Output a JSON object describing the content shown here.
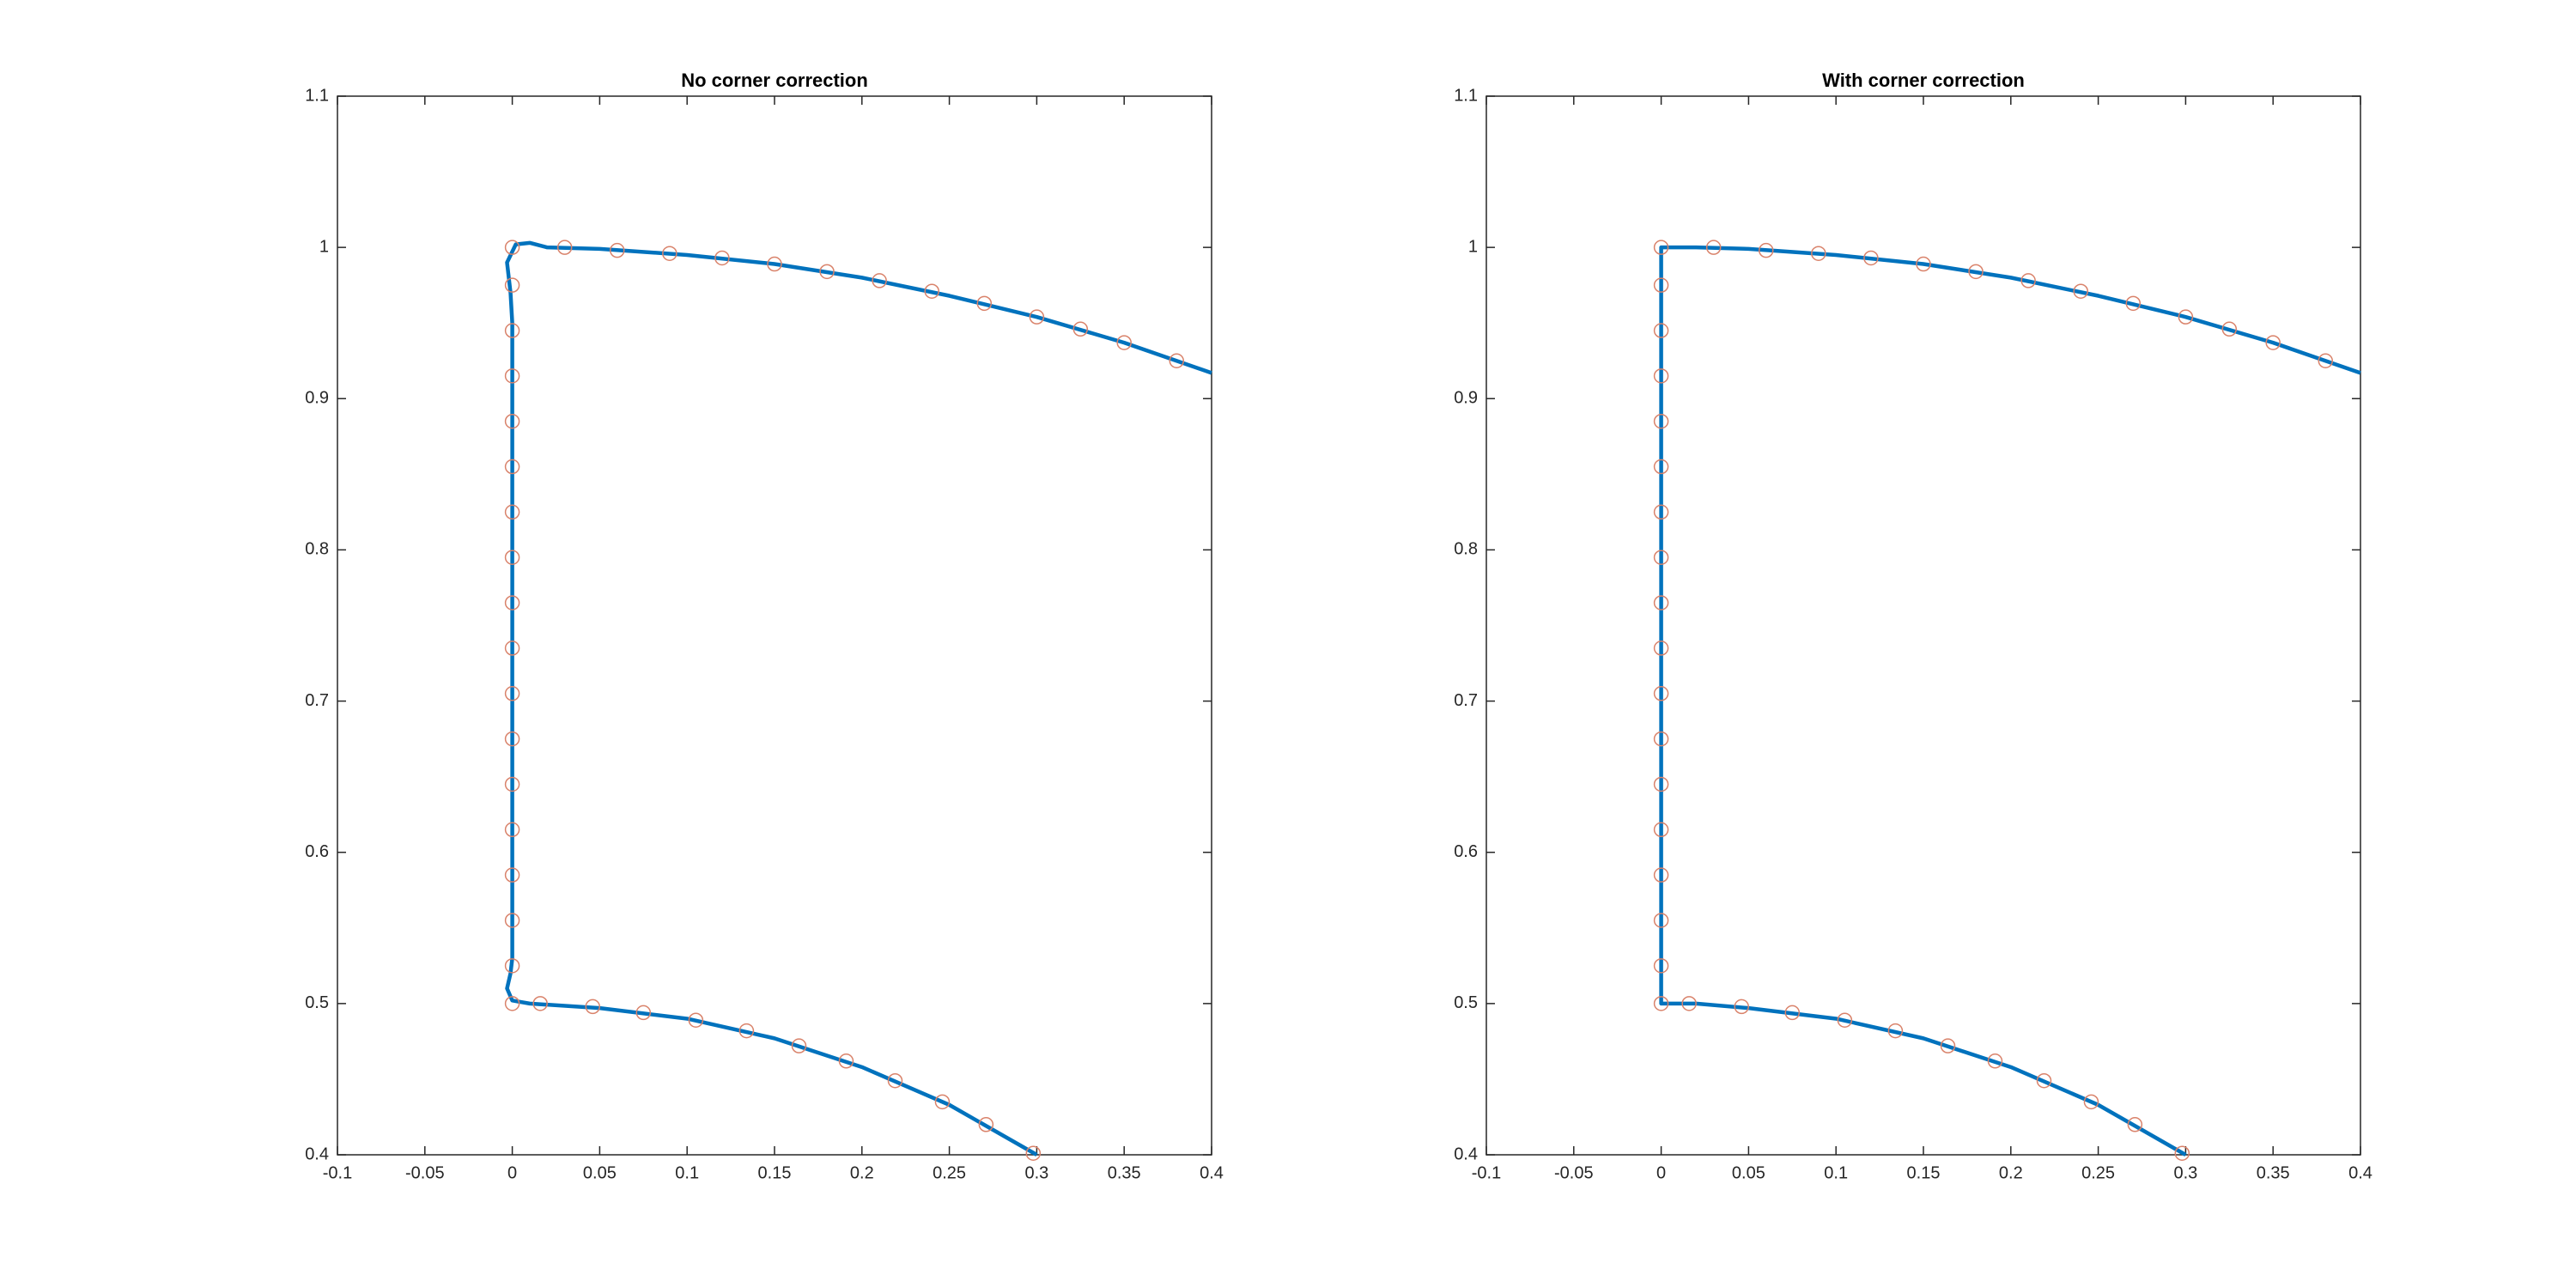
{
  "chart_data": [
    {
      "type": "line",
      "title": "No corner correction",
      "xlim": [
        -0.1,
        0.4
      ],
      "ylim": [
        0.4,
        1.1
      ],
      "xticks": [
        -0.1,
        -0.05,
        0,
        0.05,
        0.1,
        0.15,
        0.2,
        0.25,
        0.3,
        0.35,
        0.4
      ],
      "yticks": [
        0.4,
        0.5,
        0.6,
        0.7,
        0.8,
        0.9,
        1,
        1.1
      ],
      "series": [
        {
          "mode": "line",
          "color": "#0072bd",
          "x": [
            0.4,
            0.35,
            0.3,
            0.25,
            0.2,
            0.15,
            0.1,
            0.05,
            0.02,
            0.01,
            0.002,
            -0.003,
            -0.001,
            0,
            0,
            0,
            0,
            -0.001,
            -0.003,
            0,
            0.01,
            0.05,
            0.1,
            0.15,
            0.2,
            0.25,
            0.3
          ],
          "values": [
            0.917,
            0.937,
            0.954,
            0.968,
            0.98,
            0.989,
            0.995,
            0.999,
            1.0,
            1.003,
            1.002,
            0.99,
            0.97,
            0.95,
            0.75,
            0.55,
            0.53,
            0.52,
            0.51,
            0.502,
            0.5,
            0.497,
            0.49,
            0.477,
            0.458,
            0.433,
            0.4
          ]
        },
        {
          "mode": "markers",
          "color": "#d9826a",
          "x": [
            0.38,
            0.35,
            0.325,
            0.3,
            0.27,
            0.24,
            0.21,
            0.18,
            0.15,
            0.12,
            0.09,
            0.06,
            0.03,
            0,
            0,
            0,
            0,
            0,
            0,
            0,
            0,
            0,
            0,
            0,
            0,
            0,
            0,
            0,
            0,
            0,
            0,
            0.016,
            0.046,
            0.075,
            0.105,
            0.134,
            0.164,
            0.191,
            0.219,
            0.246,
            0.271,
            0.298
          ],
          "values": [
            0.925,
            0.937,
            0.946,
            0.954,
            0.963,
            0.971,
            0.978,
            0.984,
            0.989,
            0.993,
            0.996,
            0.998,
            1,
            1,
            0.975,
            0.945,
            0.915,
            0.885,
            0.855,
            0.825,
            0.795,
            0.765,
            0.735,
            0.705,
            0.675,
            0.645,
            0.615,
            0.585,
            0.555,
            0.525,
            0.5,
            0.5,
            0.498,
            0.494,
            0.489,
            0.482,
            0.472,
            0.462,
            0.449,
            0.435,
            0.42,
            0.401
          ]
        }
      ]
    },
    {
      "type": "line",
      "title": "With corner correction",
      "xlim": [
        -0.1,
        0.4
      ],
      "ylim": [
        0.4,
        1.1
      ],
      "xticks": [
        -0.1,
        -0.05,
        0,
        0.05,
        0.1,
        0.15,
        0.2,
        0.25,
        0.3,
        0.35,
        0.4
      ],
      "yticks": [
        0.4,
        0.5,
        0.6,
        0.7,
        0.8,
        0.9,
        1,
        1.1
      ],
      "series": [
        {
          "mode": "line",
          "color": "#0072bd",
          "x": [
            0.4,
            0.35,
            0.3,
            0.25,
            0.2,
            0.15,
            0.1,
            0.05,
            0.02,
            0,
            0,
            0,
            0.02,
            0.05,
            0.1,
            0.15,
            0.2,
            0.25,
            0.3
          ],
          "values": [
            0.917,
            0.937,
            0.954,
            0.968,
            0.98,
            0.989,
            0.995,
            0.999,
            1.0,
            1.0,
            0.75,
            0.5,
            0.5,
            0.497,
            0.49,
            0.477,
            0.458,
            0.433,
            0.4
          ]
        },
        {
          "mode": "markers",
          "color": "#d9826a",
          "x": [
            0.38,
            0.35,
            0.325,
            0.3,
            0.27,
            0.24,
            0.21,
            0.18,
            0.15,
            0.12,
            0.09,
            0.06,
            0.03,
            0,
            0,
            0,
            0,
            0,
            0,
            0,
            0,
            0,
            0,
            0,
            0,
            0,
            0,
            0,
            0,
            0,
            0,
            0.016,
            0.046,
            0.075,
            0.105,
            0.134,
            0.164,
            0.191,
            0.219,
            0.246,
            0.271,
            0.298
          ],
          "values": [
            0.925,
            0.937,
            0.946,
            0.954,
            0.963,
            0.971,
            0.978,
            0.984,
            0.989,
            0.993,
            0.996,
            0.998,
            1,
            1,
            0.975,
            0.945,
            0.915,
            0.885,
            0.855,
            0.825,
            0.795,
            0.765,
            0.735,
            0.705,
            0.675,
            0.645,
            0.615,
            0.585,
            0.555,
            0.525,
            0.5,
            0.5,
            0.498,
            0.494,
            0.489,
            0.482,
            0.472,
            0.462,
            0.449,
            0.435,
            0.42,
            0.401
          ]
        }
      ]
    }
  ]
}
